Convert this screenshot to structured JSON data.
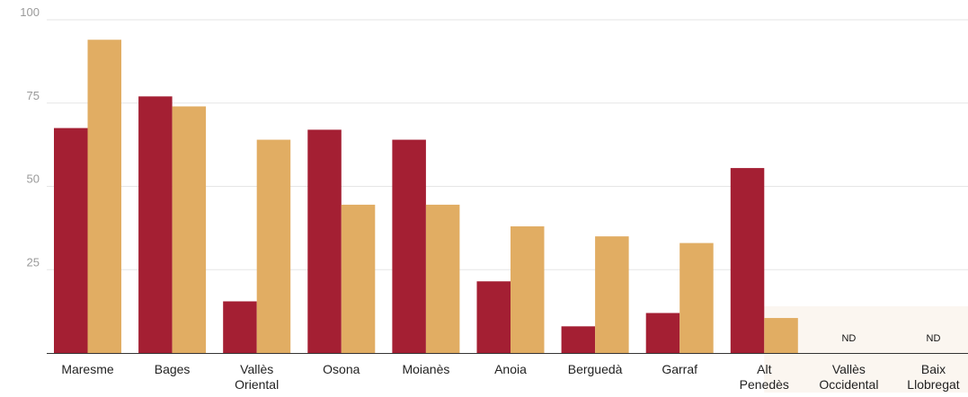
{
  "chart_data": {
    "type": "bar",
    "title": "",
    "xlabel": "",
    "ylabel": "",
    "ylim": [
      0,
      100
    ],
    "yticks": [
      25,
      50,
      75,
      100
    ],
    "grid": true,
    "legend": "none",
    "categories": [
      [
        "Maresme"
      ],
      [
        "Bages"
      ],
      [
        "Vallès",
        "Oriental"
      ],
      [
        "Osona"
      ],
      [
        "Moianès"
      ],
      [
        "Anoia"
      ],
      [
        "Berguedà"
      ],
      [
        "Garraf"
      ],
      [
        "Alt",
        "Penedès"
      ],
      [
        "Vallès",
        "Occidental"
      ],
      [
        "Baix",
        "Llobregat"
      ]
    ],
    "series": [
      {
        "color": "#a41f33",
        "values": [
          67.5,
          77,
          15.5,
          67,
          64,
          21.5,
          8,
          12,
          55.5,
          null,
          null
        ]
      },
      {
        "color": "#e1ad63",
        "values": [
          94,
          74,
          64,
          44.5,
          44.5,
          38,
          35,
          33,
          10.5,
          null,
          null
        ]
      }
    ],
    "highlight_color": "#fbf6f0",
    "highlighted_categories": [
      8,
      9,
      10
    ],
    "missing_label": "ND"
  }
}
